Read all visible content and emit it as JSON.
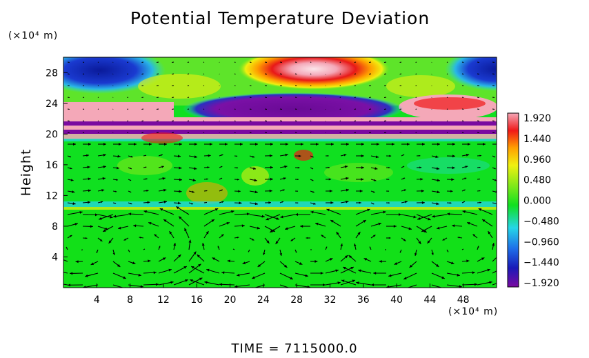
{
  "chart_data": {
    "type": "heatmap",
    "title": "Potential Temperature Deviation",
    "ylabel": "Height",
    "x_unit": "(×10⁴ m)",
    "y_unit": "(×10⁴ m)",
    "xlim": [
      0,
      52
    ],
    "ylim": [
      0,
      30
    ],
    "x_ticks": [
      "4",
      "8",
      "12",
      "16",
      "20",
      "24",
      "28",
      "32",
      "36",
      "40",
      "44",
      "48"
    ],
    "y_ticks": [
      "4",
      "8",
      "12",
      "16",
      "20",
      "24",
      "28"
    ],
    "colorbar": {
      "ticks": [
        "1.920",
        "1.440",
        "0.960",
        "0.480",
        "0.000",
        "−0.480",
        "−0.960",
        "−1.440",
        "−1.920"
      ],
      "range": [
        -1.92,
        1.92
      ],
      "colors": [
        "#7a0aa0",
        "#1a1ab8",
        "#1e6ee8",
        "#25d6e8",
        "#10e020",
        "#7ee81a",
        "#f0f010",
        "#ffa000",
        "#f01818",
        "#f4a8b8"
      ]
    },
    "vector_overlay": "wind arrows",
    "features": [
      {
        "label": "blue anomaly top-left",
        "x": 5,
        "y": 28,
        "value": -1.6
      },
      {
        "label": "red anomaly top-center",
        "x": 30,
        "y": 28,
        "value": 1.7
      },
      {
        "label": "blue anomaly top-right",
        "x": 51,
        "y": 28,
        "value": -1.4
      },
      {
        "label": "purple cold layer",
        "x": 30,
        "y": 22.5,
        "value": -1.9
      },
      {
        "label": "pink warm layer",
        "x": 46,
        "y": 23.5,
        "value": 1.9
      },
      {
        "label": "convective layer interface",
        "x": 26,
        "y": 10,
        "value": -0.6
      }
    ],
    "time_label": "TIME = 7115000.0"
  }
}
